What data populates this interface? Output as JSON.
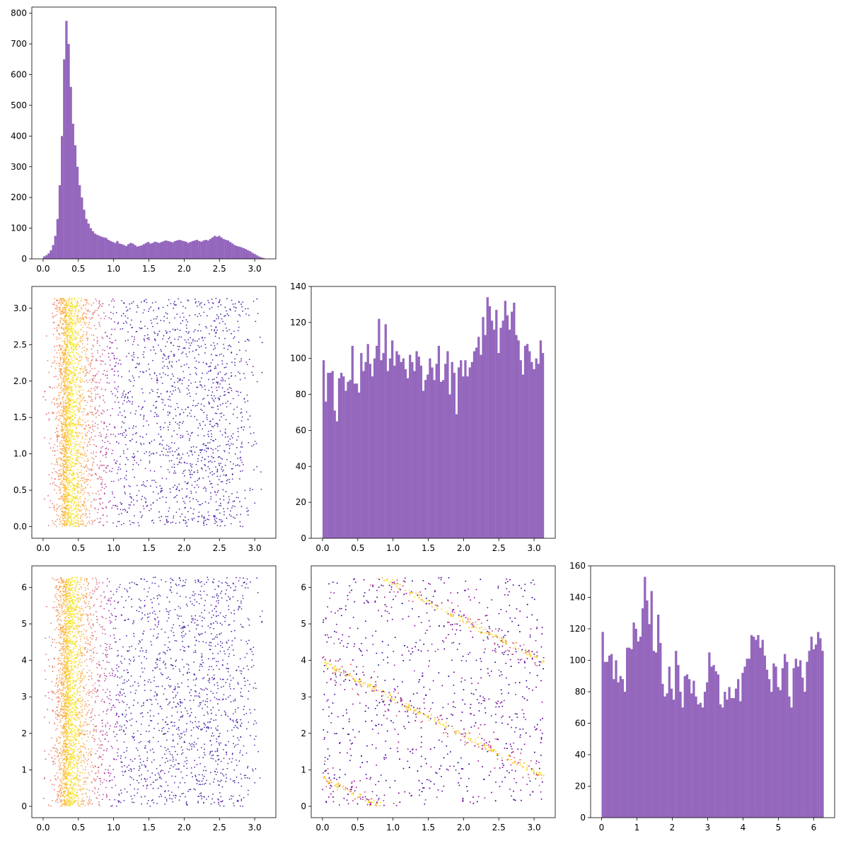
{
  "chart_data": [
    {
      "type": "bar",
      "panel": "histogram-var-1",
      "x_range": [
        0.0,
        3.14
      ],
      "bin_count": 100,
      "xlim": [
        -0.16,
        3.3
      ],
      "ylim": [
        0,
        820
      ],
      "xticks": [
        0,
        0.5,
        1,
        1.5,
        2,
        2.5,
        3
      ],
      "yticks": [
        0,
        100,
        200,
        300,
        400,
        500,
        600,
        700,
        800
      ],
      "xtick_labels": [
        "0.0",
        "0.5",
        "1.0",
        "1.5",
        "2.0",
        "2.5",
        "3.0"
      ],
      "ytick_labels": [
        "0",
        "100",
        "200",
        "300",
        "400",
        "500",
        "600",
        "700",
        "800"
      ],
      "values": [
        8,
        12,
        18,
        28,
        45,
        75,
        130,
        240,
        400,
        650,
        775,
        700,
        560,
        440,
        370,
        300,
        240,
        200,
        160,
        130,
        115,
        100,
        90,
        82,
        78,
        75,
        72,
        70,
        68,
        62,
        58,
        55,
        52,
        58,
        50,
        48,
        45,
        42,
        48,
        52,
        50,
        45,
        40,
        42,
        44,
        48,
        52,
        55,
        50,
        52,
        56,
        54,
        52,
        55,
        58,
        60,
        58,
        56,
        54,
        58,
        60,
        62,
        60,
        58,
        56,
        52,
        55,
        58,
        60,
        62,
        58,
        56,
        60,
        62,
        60,
        65,
        70,
        75,
        72,
        75,
        70,
        65,
        62,
        60,
        55,
        50,
        45,
        42,
        40,
        38,
        35,
        32,
        28,
        25,
        20,
        16,
        12,
        8,
        5,
        3
      ],
      "color": "#9467bd"
    },
    {
      "type": "scatter",
      "panel": "scatter-var1-vs-var2",
      "xlim": [
        -0.16,
        3.3
      ],
      "ylim": [
        -0.16,
        3.3
      ],
      "xticks": [
        0,
        0.5,
        1,
        1.5,
        2,
        2.5,
        3
      ],
      "yticks": [
        0,
        0.5,
        1,
        1.5,
        2,
        2.5,
        3
      ],
      "xtick_labels": [
        "0.0",
        "0.5",
        "1.0",
        "1.5",
        "2.0",
        "2.5",
        "3.0"
      ],
      "ytick_labels": [
        "0.0",
        "0.5",
        "1.0",
        "1.5",
        "2.0",
        "2.5",
        "3.0"
      ],
      "y_range": [
        0.0,
        3.14
      ],
      "dense_band_x": 0.42,
      "colormap": "plasma"
    },
    {
      "type": "bar",
      "panel": "histogram-var-2",
      "x_range": [
        0.0,
        3.14
      ],
      "bin_count": 100,
      "xlim": [
        -0.16,
        3.3
      ],
      "ylim": [
        0,
        140
      ],
      "xticks": [
        0,
        0.5,
        1,
        1.5,
        2,
        2.5,
        3
      ],
      "yticks": [
        0,
        20,
        40,
        60,
        80,
        100,
        120,
        140
      ],
      "xtick_labels": [
        "0.0",
        "0.5",
        "1.0",
        "1.5",
        "2.0",
        "2.5",
        "3.0"
      ],
      "ytick_labels": [
        "0",
        "20",
        "40",
        "60",
        "80",
        "100",
        "120",
        "140"
      ],
      "values": [
        99,
        76,
        92,
        92,
        93,
        71,
        65,
        89,
        92,
        90,
        82,
        87,
        88,
        107,
        86,
        86,
        81,
        103,
        93,
        98,
        108,
        97,
        90,
        100,
        107,
        122,
        99,
        103,
        119,
        93,
        100,
        110,
        96,
        104,
        102,
        98,
        100,
        94,
        89,
        102,
        98,
        93,
        104,
        101,
        96,
        82,
        88,
        91,
        100,
        95,
        88,
        97,
        107,
        87,
        88,
        97,
        104,
        80,
        98,
        92,
        69,
        95,
        99,
        90,
        99,
        90,
        95,
        98,
        104,
        106,
        112,
        102,
        123,
        113,
        134,
        129,
        121,
        116,
        127,
        103,
        117,
        121,
        132,
        124,
        116,
        126,
        131,
        113,
        110,
        99,
        91,
        107,
        108,
        104,
        98,
        94,
        100,
        97,
        110,
        103
      ],
      "color": "#9467bd"
    },
    {
      "type": "scatter",
      "panel": "scatter-var1-vs-var3",
      "xlim": [
        -0.16,
        3.3
      ],
      "ylim": [
        -0.31,
        6.59
      ],
      "xticks": [
        0,
        0.5,
        1,
        1.5,
        2,
        2.5,
        3
      ],
      "yticks": [
        0,
        1,
        2,
        3,
        4,
        5,
        6
      ],
      "xtick_labels": [
        "0.0",
        "0.5",
        "1.0",
        "1.5",
        "2.0",
        "2.5",
        "3.0"
      ],
      "ytick_labels": [
        "0",
        "1",
        "2",
        "3",
        "4",
        "5",
        "6"
      ],
      "y_range": [
        0.0,
        6.28
      ],
      "dense_band_x": 0.42,
      "colormap": "plasma"
    },
    {
      "type": "scatter",
      "panel": "scatter-var2-vs-var3",
      "xlim": [
        -0.16,
        3.3
      ],
      "ylim": [
        -0.31,
        6.59
      ],
      "xticks": [
        0,
        0.5,
        1,
        1.5,
        2,
        2.5,
        3
      ],
      "yticks": [
        0,
        1,
        2,
        3,
        4,
        5,
        6
      ],
      "xtick_labels": [
        "0.0",
        "0.5",
        "1.0",
        "1.5",
        "2.0",
        "2.5",
        "3.0"
      ],
      "ytick_labels": [
        "0",
        "1",
        "2",
        "3",
        "4",
        "5",
        "6"
      ],
      "bands": [
        {
          "x0": 0.0,
          "y0": 0.8,
          "slope": -1.0
        },
        {
          "x0": 0.0,
          "y0": 3.95,
          "slope": -1.0
        },
        {
          "x0": 0.0,
          "y0": 7.1,
          "slope": -1.0
        }
      ],
      "colormap": "plasma"
    },
    {
      "type": "bar",
      "panel": "histogram-var-3",
      "x_range": [
        0.0,
        6.28
      ],
      "bin_count": 100,
      "xlim": [
        -0.31,
        6.59
      ],
      "ylim": [
        0,
        160
      ],
      "xticks": [
        0,
        1,
        2,
        3,
        4,
        5,
        6
      ],
      "yticks": [
        0,
        20,
        40,
        60,
        80,
        100,
        120,
        140,
        160
      ],
      "xtick_labels": [
        "0",
        "1",
        "2",
        "3",
        "4",
        "5",
        "6"
      ],
      "ytick_labels": [
        "0",
        "20",
        "40",
        "60",
        "80",
        "100",
        "120",
        "140",
        "160"
      ],
      "values": [
        118,
        99,
        99,
        103,
        104,
        88,
        100,
        86,
        90,
        88,
        80,
        108,
        108,
        107,
        124,
        120,
        112,
        115,
        133,
        153,
        138,
        123,
        144,
        106,
        105,
        129,
        111,
        85,
        77,
        79,
        96,
        82,
        75,
        106,
        97,
        80,
        70,
        90,
        91,
        88,
        79,
        87,
        77,
        72,
        73,
        70,
        80,
        86,
        105,
        96,
        97,
        93,
        91,
        72,
        70,
        80,
        75,
        83,
        76,
        76,
        82,
        88,
        74,
        92,
        96,
        101,
        101,
        116,
        115,
        113,
        116,
        108,
        113,
        103,
        94,
        88,
        80,
        98,
        96,
        83,
        81,
        95,
        104,
        99,
        77,
        70,
        95,
        101,
        96,
        100,
        89,
        80,
        99,
        106,
        115,
        107,
        110,
        118,
        114,
        106
      ],
      "color": "#9467bd"
    }
  ]
}
